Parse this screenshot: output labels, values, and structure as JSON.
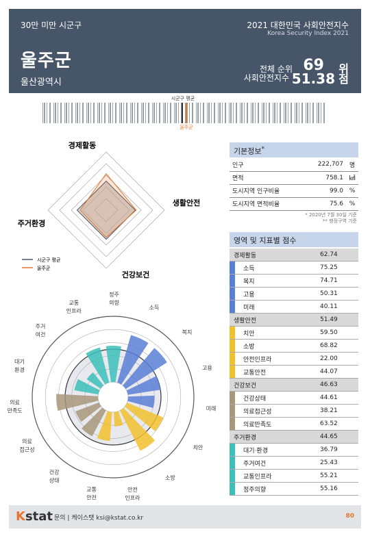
{
  "header": {
    "category": "30만 미만 시군구",
    "name": "울주군",
    "region": "울산광역시",
    "title": "2021 대한민국 사회안전지수",
    "title_en": "Korea Security Index 2021",
    "rank_label": "전체 순위",
    "rank_value": "69",
    "rank_unit": "위",
    "index_label": "사회안전지수",
    "index_value": "51.38",
    "index_unit": "점"
  },
  "barcode": {
    "avg_label": "시군구 평균",
    "self_label": "울주군"
  },
  "radar": {
    "axes": [
      "경제활동",
      "생활안전",
      "건강보건",
      "주거환경"
    ],
    "legend_avg": "시군구 평균",
    "legend_self": "울주군",
    "colors": {
      "avg": "#4a5568",
      "self": "#e8762c"
    }
  },
  "polar": {
    "labels": [
      "소득",
      "복지",
      "고용",
      "미래",
      "치안",
      "소방",
      "안전\n인프라",
      "교통\n안전",
      "건강\n상태",
      "의료\n접근성",
      "의료\n만족도",
      "대기\n환경",
      "주거\n여건",
      "교통\n인프라",
      "정주\n의향"
    ]
  },
  "basic_info": {
    "title": "기본정보",
    "rows": [
      {
        "label": "인구",
        "value": "222,707",
        "unit": "명"
      },
      {
        "label": "면적",
        "value": "758.1",
        "unit": "㎢"
      },
      {
        "label": "도시지역 인구비율",
        "value": "99.0",
        "unit": "%"
      },
      {
        "label": "도시지역 면적비율",
        "value": "75.6",
        "unit": "%"
      }
    ],
    "note1": "* 2020년 7월 30일 기준",
    "note2": "** 행정구역 기준"
  },
  "scores": {
    "title": "영역 및 지표별 점수",
    "groups": [
      {
        "name": "경제활동",
        "value": "62.74",
        "color": "#5b7fd6",
        "items": [
          {
            "name": "소득",
            "value": "75.25"
          },
          {
            "name": "복지",
            "value": "74.71"
          },
          {
            "name": "고용",
            "value": "50.31"
          },
          {
            "name": "미래",
            "value": "40.11"
          }
        ]
      },
      {
        "name": "생활안전",
        "value": "51.49",
        "color": "#f2c12e",
        "items": [
          {
            "name": "치안",
            "value": "59.50"
          },
          {
            "name": "소방",
            "value": "68.82"
          },
          {
            "name": "안전인프라",
            "value": "22.00"
          },
          {
            "name": "교통안전",
            "value": "44.07"
          }
        ]
      },
      {
        "name": "건강보건",
        "value": "46.63",
        "color": "#a8987a",
        "items": [
          {
            "name": "건강상태",
            "value": "44.61"
          },
          {
            "name": "의료접근성",
            "value": "38.21"
          },
          {
            "name": "의료만족도",
            "value": "63.52"
          }
        ]
      },
      {
        "name": "주거환경",
        "value": "44.65",
        "color": "#3bbfb8",
        "items": [
          {
            "name": "대기·환경",
            "value": "36.79"
          },
          {
            "name": "주거여건",
            "value": "25.43"
          },
          {
            "name": "교통인프라",
            "value": "55.21"
          },
          {
            "name": "정주의향",
            "value": "55.16"
          }
        ]
      }
    ]
  },
  "footer": {
    "logo_k": "K",
    "logo_rest": "stat",
    "contact": "문의 | 케이스탯 ksi@kstat.co.kr",
    "page": "80"
  },
  "chart_data": [
    {
      "type": "radar",
      "categories": [
        "경제활동",
        "생활안전",
        "건강보건",
        "주거환경"
      ],
      "series": [
        {
          "name": "시군구 평균",
          "values": [
            50,
            50,
            50,
            50
          ]
        },
        {
          "name": "울주군",
          "values": [
            62.74,
            51.49,
            46.63,
            44.65
          ]
        }
      ]
    },
    {
      "type": "bar",
      "categories": [
        "소득",
        "복지",
        "고용",
        "미래",
        "치안",
        "소방",
        "안전인프라",
        "교통안전",
        "건강상태",
        "의료접근성",
        "의료만족도",
        "대기·환경",
        "주거여건",
        "교통인프라",
        "정주의향"
      ],
      "values": [
        75.25,
        74.71,
        50.31,
        40.11,
        59.5,
        68.82,
        22.0,
        44.07,
        44.61,
        38.21,
        63.52,
        36.79,
        25.43,
        55.21,
        55.16
      ]
    }
  ]
}
